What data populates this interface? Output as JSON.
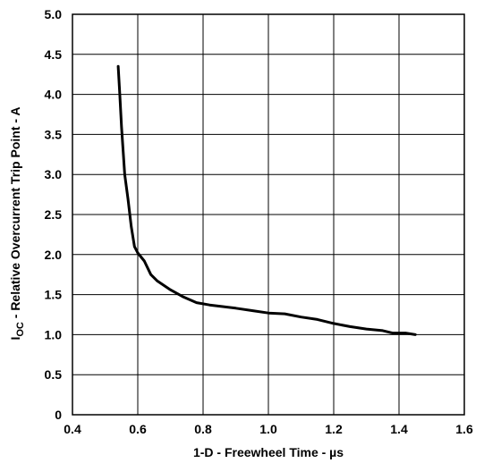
{
  "chart_data": {
    "type": "line",
    "title": "",
    "xlabel": "1-D - Freewheel Time  - µs",
    "ylabel": {
      "main": "I",
      "subscript": "OC",
      "rest": " - Relative Overcurrent Trip Point  - A"
    },
    "xlim": [
      0.4,
      1.6
    ],
    "ylim": [
      0,
      5.0
    ],
    "xticks": [
      "0.4",
      "0.6",
      "0.8",
      "1.0",
      "1.2",
      "1.4",
      "1.6"
    ],
    "yticks": [
      "0",
      "0.5",
      "1.0",
      "1.5",
      "2.0",
      "2.5",
      "3.0",
      "3.5",
      "4.0",
      "4.5",
      "5.0"
    ],
    "grid": true,
    "line_color": "#000000",
    "series": [
      {
        "x": [
          0.54,
          0.545,
          0.55,
          0.555,
          0.56,
          0.57,
          0.58,
          0.59,
          0.6,
          0.62,
          0.64,
          0.66,
          0.7,
          0.74,
          0.78,
          0.82,
          0.86,
          0.9,
          0.95,
          1.0,
          1.05,
          1.1,
          1.15,
          1.2,
          1.25,
          1.3,
          1.35,
          1.38,
          1.42,
          1.45
        ],
        "y": [
          4.35,
          4.0,
          3.6,
          3.3,
          3.0,
          2.7,
          2.35,
          2.1,
          2.02,
          1.92,
          1.75,
          1.67,
          1.56,
          1.47,
          1.4,
          1.37,
          1.35,
          1.33,
          1.3,
          1.27,
          1.26,
          1.22,
          1.19,
          1.14,
          1.1,
          1.07,
          1.05,
          1.02,
          1.02,
          1.0
        ]
      }
    ]
  }
}
